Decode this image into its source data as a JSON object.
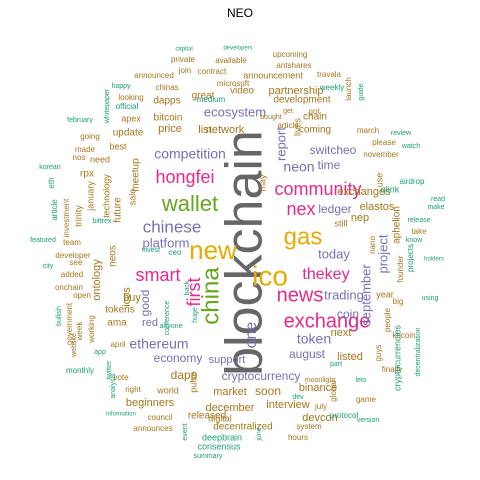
{
  "title": "NEO",
  "colors": {
    "teal": "#1b9e77",
    "orange": "#d95f02",
    "purple": "#7570b3",
    "pink": "#e7298a",
    "green": "#66a61e",
    "gold": "#e6ab02",
    "brown": "#a6761d",
    "gray": "#666666"
  },
  "words": [
    "blockchain",
    "new",
    "ico",
    "gas",
    "news",
    "exchange",
    "wallet",
    "nex",
    "china",
    "community",
    "smart",
    "hongfei",
    "thekey",
    "first",
    "chinese",
    "token",
    "ethereum",
    "one",
    "platform",
    "today",
    "trading",
    "neon",
    "switcheo",
    "ledger",
    "report",
    "time",
    "ecosystem",
    "august",
    "competition",
    "coin",
    "partnership",
    "dapp",
    "economy",
    "cryptocurrency",
    "project",
    "ontology",
    "exchanges",
    "listed",
    "september",
    "elastos",
    "nep",
    "market",
    "soon",
    "next",
    "binance",
    "december",
    "beginners",
    "released",
    "interview",
    "devcon",
    "decentralized",
    "deepbrain",
    "consensus",
    "summary",
    "ceo",
    "qlink",
    "neos",
    "tokens",
    "ama",
    "red",
    "good",
    "icos",
    "buy",
    "support",
    "list",
    "network",
    "price",
    "update",
    "future",
    "meetup",
    "sale",
    "bitcoin",
    "dapps",
    "video",
    "development",
    "coming",
    "chain",
    "great",
    "announcement",
    "contract",
    "available",
    "upcoming",
    "antshares",
    "travala",
    "private",
    "join",
    "microsoft",
    "developers",
    "capital",
    "chinas",
    "medium",
    "weekly",
    "launch",
    "guide",
    "apex",
    "official",
    "looking",
    "announced",
    "happy",
    "whitepaper",
    "going",
    "made",
    "nos",
    "need",
    "rpx",
    "best",
    "technology",
    "january",
    "investment",
    "trinity",
    "team",
    "developer",
    "city",
    "added",
    "onchain",
    "open",
    "see",
    "government",
    "bullish",
    "week",
    "working",
    "website",
    "april",
    "app",
    "twitter",
    "vote",
    "right",
    "world",
    "pulse",
    "council",
    "announces",
    "information",
    "event",
    "digital",
    "june",
    "hours",
    "system",
    "dev",
    "july",
    "global",
    "protocol",
    "game",
    "version",
    "lets",
    "finally",
    "kucoin",
    "guys",
    "people",
    "big",
    "year",
    "using",
    "cryptocurrencies",
    "decentralization",
    "aphelion",
    "founder",
    "projects",
    "nano",
    "still",
    "release",
    "take",
    "know",
    "airdrop",
    "watch",
    "review",
    "november",
    "march",
    "please",
    "lives",
    "get",
    "got",
    "use",
    "may",
    "article",
    "article",
    "eth",
    "february",
    "korean",
    "monthly",
    "featured",
    "analysis",
    "anyone",
    "huge",
    "back",
    "conference",
    "invest",
    "bittrex",
    "part",
    "read",
    "make",
    "holders",
    "bought",
    "moonlight",
    "like",
    "cryptocurrency"
  ]
}
